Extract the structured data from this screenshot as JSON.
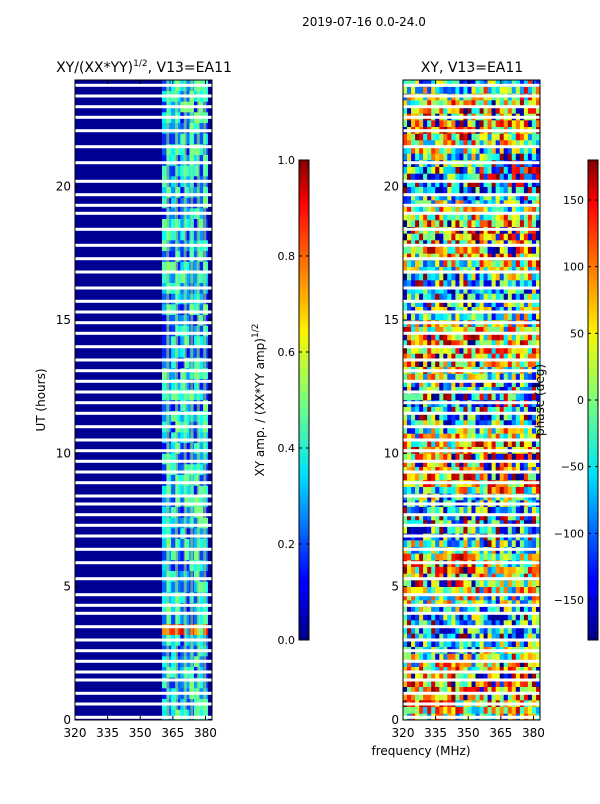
{
  "page": {
    "suptitle": "2019-07-16 0.0-24.0",
    "shared_xlabel": "frequency (MHz)"
  },
  "chart_data": [
    {
      "type": "heatmap",
      "title_main": "XY/(XX*YY)",
      "title_sup": "1/2",
      "title_rest": ", V13=EA11",
      "xlabel": "",
      "ylabel": "UT (hours)",
      "xlim": [
        320,
        383
      ],
      "ylim": [
        0,
        24
      ],
      "xticks": [
        320,
        335,
        350,
        365,
        380
      ],
      "yticks": [
        0,
        5,
        10,
        15,
        20
      ],
      "colorbar": {
        "label_main": "XY amp. / (XX*YY amp)",
        "label_sup": "1/2",
        "range": [
          0.0,
          1.0
        ],
        "ticks": [
          "0.0",
          "0.2",
          "0.4",
          "0.6",
          "0.8",
          "1.0"
        ],
        "tick_values": [
          0.0,
          0.2,
          0.4,
          0.6,
          0.8,
          1.0
        ],
        "colormap": "jet"
      },
      "background_value": 0.02,
      "active_band_mhz": [
        360,
        381
      ],
      "active_columns_mhz": [
        362,
        366,
        370,
        373,
        376,
        379
      ],
      "gap_hours": [
        0.1,
        0.6,
        1.0,
        1.5,
        1.8,
        2.2,
        2.6,
        3.0,
        3.5,
        4.0,
        4.3,
        4.7,
        5.3,
        5.9,
        6.4,
        6.9,
        7.3,
        7.7,
        8.1,
        8.4,
        8.9,
        9.3,
        9.7,
        10.1,
        10.5,
        11.0,
        11.5,
        11.9,
        12.3,
        12.7,
        13.1,
        13.5,
        14.0,
        14.5,
        14.9,
        15.3,
        15.7,
        16.2,
        16.8,
        17.3,
        17.8,
        18.4,
        19.0,
        19.3,
        19.7,
        20.2,
        20.9,
        21.5,
        22.1,
        22.6,
        23.0,
        23.4,
        23.8
      ]
    },
    {
      "type": "heatmap",
      "title_main": "XY, V13=EA11",
      "title_sup": "",
      "title_rest": "",
      "xlabel": "frequency (MHz)",
      "ylabel": "",
      "xlim": [
        320,
        383
      ],
      "ylim": [
        0,
        24
      ],
      "xticks": [
        320,
        335,
        350,
        365,
        380
      ],
      "yticks": [
        0,
        5,
        10,
        15,
        20
      ],
      "colorbar": {
        "label_main": "phase (deg)",
        "label_sup": "",
        "range": [
          -180,
          180
        ],
        "ticks": [
          "−150",
          "−100",
          "−50",
          "0",
          "50",
          "100",
          "150"
        ],
        "tick_values": [
          -150,
          -100,
          -50,
          0,
          50,
          100,
          150
        ],
        "colormap": "jet"
      },
      "gap_hours": [
        0.1,
        0.6,
        1.0,
        1.5,
        1.8,
        2.2,
        2.6,
        3.0,
        3.5,
        4.0,
        4.3,
        4.7,
        5.3,
        5.9,
        6.4,
        6.9,
        7.3,
        7.7,
        8.1,
        8.4,
        8.9,
        9.3,
        9.7,
        10.1,
        10.5,
        11.0,
        11.5,
        11.9,
        12.3,
        12.7,
        13.1,
        13.5,
        14.0,
        14.5,
        14.9,
        15.3,
        15.7,
        16.2,
        16.8,
        17.3,
        17.8,
        18.4,
        19.0,
        19.3,
        19.7,
        20.2,
        20.9,
        21.5,
        22.1,
        22.6,
        23.0,
        23.4,
        23.8
      ]
    }
  ]
}
